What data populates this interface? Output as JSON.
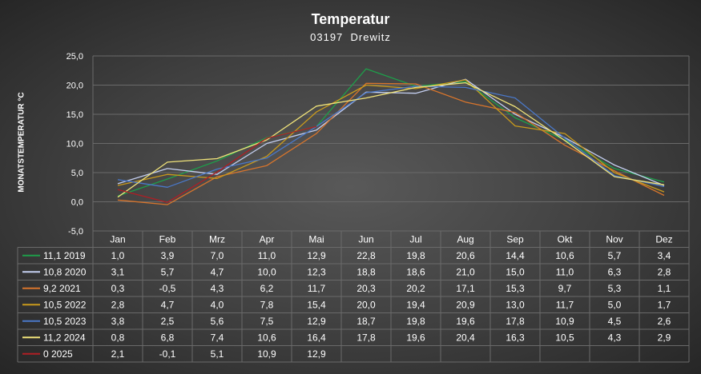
{
  "chart_data": {
    "type": "line",
    "title": "Temperatur",
    "subtitle": "03197  Drewitz",
    "ylabel": "MONATSTEMPERATUR °C",
    "xlabel": "",
    "categories": [
      "Jan",
      "Feb",
      "Mrz",
      "Apr",
      "Mai",
      "Jun",
      "Jul",
      "Aug",
      "Sep",
      "Okt",
      "Nov",
      "Dez"
    ],
    "yticks": [
      "25,0",
      "20,0",
      "15,0",
      "10,0",
      "5,0",
      "0,0",
      "-5,0"
    ],
    "ylim": [
      -5,
      25
    ],
    "grid": true,
    "legend": "table-below",
    "series": [
      {
        "name": "11,1 2019",
        "color": "#1e9e4a",
        "values": [
          1.0,
          3.9,
          7.0,
          11.0,
          12.9,
          22.8,
          19.8,
          20.6,
          14.4,
          10.6,
          5.7,
          3.4
        ]
      },
      {
        "name": "10,8 2020",
        "color": "#c4cff0",
        "values": [
          3.1,
          5.7,
          4.7,
          10.0,
          12.3,
          18.8,
          18.6,
          21.0,
          15.0,
          11.0,
          6.3,
          2.8
        ]
      },
      {
        "name": "9,2 2021",
        "color": "#d8752c",
        "values": [
          0.3,
          -0.5,
          4.3,
          6.2,
          11.7,
          20.3,
          20.2,
          17.1,
          15.3,
          9.7,
          5.3,
          1.1
        ]
      },
      {
        "name": "10,5 2022",
        "color": "#c99a1c",
        "values": [
          2.8,
          4.7,
          4.0,
          7.8,
          15.4,
          20.0,
          19.4,
          20.9,
          13.0,
          11.7,
          5.0,
          1.7
        ]
      },
      {
        "name": "10,5 2023",
        "color": "#4a78c8",
        "values": [
          3.8,
          2.5,
          5.6,
          7.5,
          12.9,
          18.7,
          19.8,
          19.6,
          17.8,
          10.9,
          4.5,
          2.6
        ]
      },
      {
        "name": "11,2 2024",
        "color": "#f0e37a",
        "values": [
          0.8,
          6.8,
          7.4,
          10.6,
          16.4,
          17.8,
          19.6,
          20.4,
          16.3,
          10.5,
          4.3,
          2.9
        ]
      },
      {
        "name": "0 2025",
        "color": "#b01e24",
        "values": [
          2.1,
          -0.1,
          5.1,
          10.9,
          12.9,
          null,
          null,
          null,
          null,
          null,
          null,
          null
        ]
      }
    ],
    "table_rows": [
      {
        "label": "11,1 2019",
        "cells": [
          "1,0",
          "3,9",
          "7,0",
          "11,0",
          "12,9",
          "22,8",
          "19,8",
          "20,6",
          "14,4",
          "10,6",
          "5,7",
          "3,4"
        ]
      },
      {
        "label": "10,8 2020",
        "cells": [
          "3,1",
          "5,7",
          "4,7",
          "10,0",
          "12,3",
          "18,8",
          "18,6",
          "21,0",
          "15,0",
          "11,0",
          "6,3",
          "2,8"
        ]
      },
      {
        "label": "9,2 2021",
        "cells": [
          "0,3",
          "-0,5",
          "4,3",
          "6,2",
          "11,7",
          "20,3",
          "20,2",
          "17,1",
          "15,3",
          "9,7",
          "5,3",
          "1,1"
        ]
      },
      {
        "label": "10,5 2022",
        "cells": [
          "2,8",
          "4,7",
          "4,0",
          "7,8",
          "15,4",
          "20,0",
          "19,4",
          "20,9",
          "13,0",
          "11,7",
          "5,0",
          "1,7"
        ]
      },
      {
        "label": "10,5 2023",
        "cells": [
          "3,8",
          "2,5",
          "5,6",
          "7,5",
          "12,9",
          "18,7",
          "19,8",
          "19,6",
          "17,8",
          "10,9",
          "4,5",
          "2,6"
        ]
      },
      {
        "label": "11,2 2024",
        "cells": [
          "0,8",
          "6,8",
          "7,4",
          "10,6",
          "16,4",
          "17,8",
          "19,6",
          "20,4",
          "16,3",
          "10,5",
          "4,3",
          "2,9"
        ]
      },
      {
        "label": "0 2025",
        "cells": [
          "2,1",
          "-0,1",
          "5,1",
          "10,9",
          "12,9",
          "",
          "",
          "",
          "",
          "",
          "",
          ""
        ]
      }
    ]
  }
}
